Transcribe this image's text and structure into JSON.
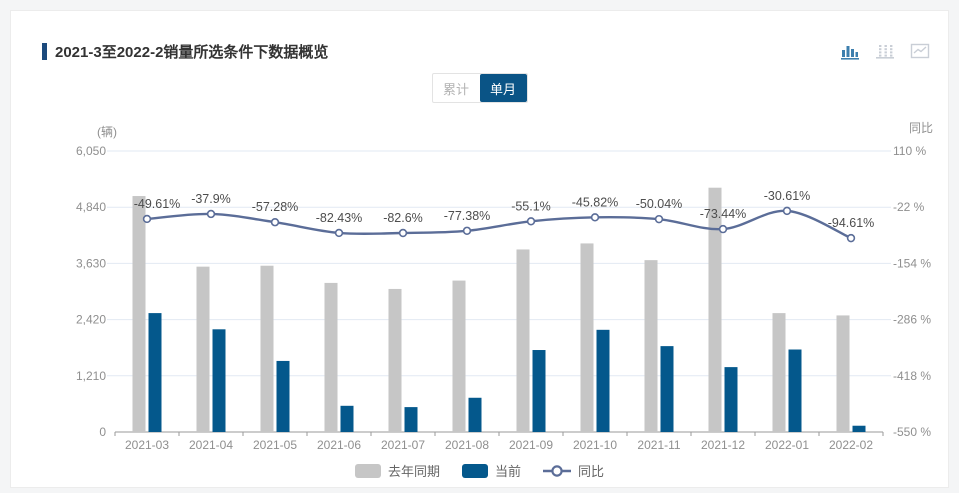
{
  "header": {
    "title": "2021-3至2022-2销量所选条件下数据概览",
    "icons": [
      {
        "name": "bar-chart-icon",
        "active": true
      },
      {
        "name": "dashed-bars-icon",
        "active": false
      },
      {
        "name": "line-chart-icon",
        "active": false
      }
    ]
  },
  "toggle": {
    "cumulative_label": "累计",
    "monthly_label": "单月",
    "selected": "单月"
  },
  "legend": [
    {
      "label": "去年同期",
      "type": "bar",
      "color": "#c6c6c6"
    },
    {
      "label": "当前",
      "type": "bar",
      "color": "#04588c"
    },
    {
      "label": "同比",
      "type": "line",
      "color": "#5b6d98"
    }
  ],
  "chart_data": {
    "type": "bar",
    "title": "2021-3至2022-2销量所选条件下数据概览",
    "categories": [
      "2021-03",
      "2021-04",
      "2021-05",
      "2021-06",
      "2021-07",
      "2021-08",
      "2021-09",
      "2021-10",
      "2021-11",
      "2021-12",
      "2022-01",
      "2022-02"
    ],
    "series": [
      {
        "name": "去年同期",
        "type": "bar",
        "axis": "left",
        "values": [
          5080,
          3560,
          3580,
          3210,
          3080,
          3260,
          3930,
          4060,
          3700,
          5260,
          2560,
          2510
        ]
      },
      {
        "name": "当前",
        "type": "bar",
        "axis": "left",
        "values": [
          2560,
          2211,
          1530,
          564,
          536,
          737,
          1765,
          2200,
          1849,
          1397,
          1776,
          135
        ]
      },
      {
        "name": "同比",
        "type": "line",
        "axis": "right",
        "values": [
          -49.61,
          -37.9,
          -57.28,
          -82.43,
          -82.6,
          -77.38,
          -55.1,
          -45.82,
          -50.04,
          -73.44,
          -30.61,
          -94.61
        ]
      }
    ],
    "data_labels": [
      "-49.61%",
      "-37.9%",
      "-57.28%",
      "-82.43%",
      "-82.6%",
      "-77.38%",
      "-55.1%",
      "-45.82%",
      "-50.04%",
      "-73.44%",
      "-30.61%",
      "-94.61%"
    ],
    "left_axis": {
      "unit": "(辆)",
      "ticks": [
        0,
        1210,
        2420,
        3630,
        4840,
        6050
      ],
      "min": 0,
      "max": 6050
    },
    "right_axis": {
      "unit": "同比",
      "ticks": [
        110,
        -22,
        -154,
        -286,
        -418,
        -550
      ],
      "min": -550,
      "max": 110,
      "suffix": " %"
    },
    "grid": true,
    "legend_position": "bottom"
  },
  "colors": {
    "accent": "#1c4a7d",
    "active_toggle_bg": "#0a5486",
    "last_year_bar": "#c6c6c6",
    "current_bar": "#04588c",
    "yoy_line": "#5b6d98",
    "grid_line": "#e2e9f3",
    "axis_line": "#9a9a9a",
    "tick_label": "#8f8f8f",
    "data_label": "#4d4d4d",
    "icon_active": "#3d7fae",
    "icon_inactive": "#c9ced6"
  }
}
